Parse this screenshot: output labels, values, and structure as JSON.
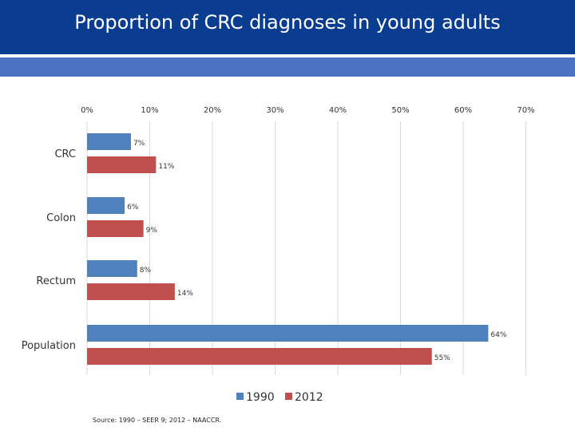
{
  "title": "Proportion of CRC diagnoses in young adults",
  "source": "Source: 1990 – SEER 9; 2012 – NAACCR.",
  "colors": {
    "header": "#0a3d8f",
    "stripe": "#4a73c4",
    "series_1990": "#4f81bd",
    "series_2012": "#c0504d"
  },
  "chart_data": {
    "type": "bar",
    "orientation": "horizontal",
    "categories": [
      "CRC",
      "Colon",
      "Rectum",
      "Population"
    ],
    "series": [
      {
        "name": "1990",
        "values": [
          7,
          6,
          8,
          64
        ],
        "labels": [
          "7%",
          "6%",
          "8%",
          "64%"
        ]
      },
      {
        "name": "2012",
        "values": [
          11,
          9,
          14,
          55
        ],
        "labels": [
          "11%",
          "9%",
          "14%",
          "55%"
        ]
      }
    ],
    "xlim": [
      0,
      70
    ],
    "ticks": [
      0,
      10,
      20,
      30,
      40,
      50,
      60,
      70
    ],
    "tick_labels": [
      "0%",
      "10%",
      "20%",
      "30%",
      "40%",
      "50%",
      "60%",
      "70%"
    ],
    "grid": true,
    "legend": "bottom"
  }
}
